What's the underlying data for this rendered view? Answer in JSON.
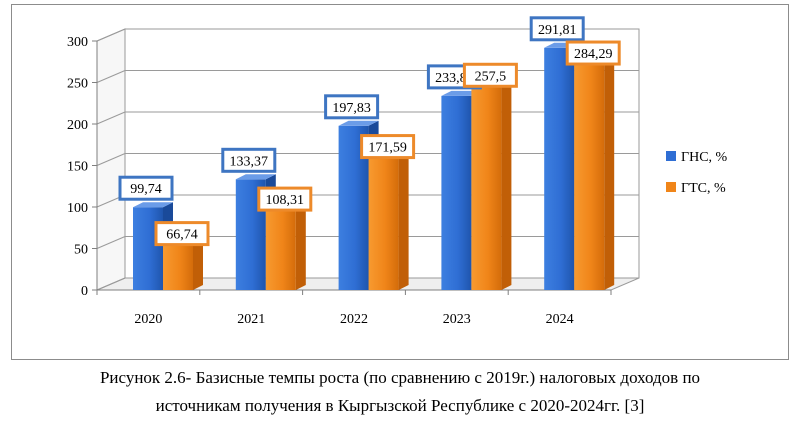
{
  "chart_data": {
    "type": "bar",
    "categories": [
      "2020",
      "2021",
      "2022",
      "2023",
      "2024"
    ],
    "series": [
      {
        "name": "ГНС, %",
        "values": [
          99.74,
          133.37,
          197.83,
          233.88,
          291.81
        ],
        "labels": [
          "99,74",
          "133,37",
          "197,83",
          "233,88",
          "291,81"
        ],
        "color": "#2f6ed4",
        "label_border": "#3e75c2"
      },
      {
        "name": "ГТС, %",
        "values": [
          66.74,
          108.31,
          171.59,
          257.5,
          284.29
        ],
        "labels": [
          "66,74",
          "108,31",
          "171,59",
          "257,5",
          "284,29"
        ],
        "color": "#f08519",
        "label_border": "#ed8a2a"
      }
    ],
    "yticks": [
      "0",
      "50",
      "100",
      "150",
      "200",
      "250",
      "300"
    ],
    "ylim": [
      0,
      300
    ],
    "grid": true,
    "style": "3d-columns",
    "legend_position": "right"
  },
  "caption": {
    "line1": "Рисунок 2.6- Базисные темпы роста (по сравнению с 2019г.) налоговых доходов по",
    "line2": "источникам получения в Кыргызской Республике с 2020-2024гг. [3]"
  }
}
